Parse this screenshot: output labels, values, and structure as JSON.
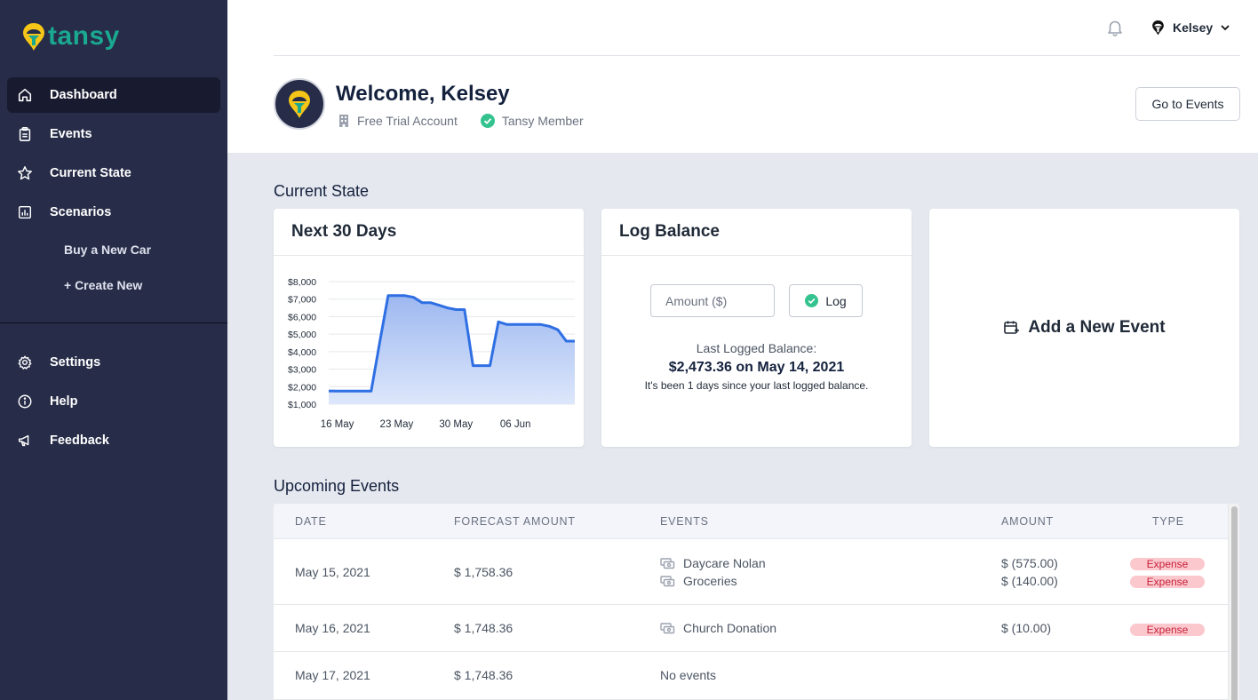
{
  "app": {
    "logo_text": "tansy"
  },
  "sidebar": {
    "items": [
      {
        "label": "Dashboard",
        "icon": "home-icon",
        "active": true
      },
      {
        "label": "Events",
        "icon": "clipboard-icon"
      },
      {
        "label": "Current State",
        "icon": "star-icon"
      },
      {
        "label": "Scenarios",
        "icon": "chart-bar-icon"
      }
    ],
    "scenarios": [
      "Buy a New Car",
      "+ Create New"
    ],
    "bottom_items": [
      {
        "label": "Settings",
        "icon": "gear-icon"
      },
      {
        "label": "Help",
        "icon": "info-icon"
      },
      {
        "label": "Feedback",
        "icon": "megaphone-icon"
      }
    ]
  },
  "header": {
    "user_name": "Kelsey",
    "welcome": "Welcome, Kelsey",
    "account_type": "Free Trial Account",
    "membership": "Tansy Member",
    "go_to_events": "Go to Events"
  },
  "current_state": {
    "title": "Current State",
    "next30": {
      "title": "Next 30 Days"
    },
    "log_balance": {
      "title": "Log Balance",
      "placeholder": "Amount ($)",
      "log_button": "Log",
      "last_label": "Last Logged Balance:",
      "last_value": "$2,473.36 on May 14, 2021",
      "since_text": "It's been 1 days since your last logged balance."
    },
    "add_event": {
      "label": "Add a New Event"
    }
  },
  "chart_data": {
    "type": "area",
    "title": "",
    "x": [
      "2021-05-15",
      "2021-05-16",
      "2021-05-17",
      "2021-05-18",
      "2021-05-19",
      "2021-05-20",
      "2021-05-21",
      "2021-05-22",
      "2021-05-23",
      "2021-05-24",
      "2021-05-25",
      "2021-05-26",
      "2021-05-27",
      "2021-05-28",
      "2021-05-29",
      "2021-05-30",
      "2021-05-31",
      "2021-06-01",
      "2021-06-02",
      "2021-06-03",
      "2021-06-04",
      "2021-06-05",
      "2021-06-06",
      "2021-06-07",
      "2021-06-08",
      "2021-06-09",
      "2021-06-10",
      "2021-06-11",
      "2021-06-12",
      "2021-06-13"
    ],
    "series": [
      {
        "values": [
          1758,
          1748,
          1748,
          1748,
          1748,
          1748,
          4500,
          7200,
          7200,
          7200,
          7100,
          6800,
          6800,
          6650,
          6500,
          6400,
          6400,
          3200,
          3200,
          3200,
          5700,
          5550,
          5550,
          5550,
          5550,
          5550,
          5450,
          5250,
          4600,
          4600
        ]
      }
    ],
    "x_ticks": [
      "16 May",
      "23 May",
      "30 May",
      "06 Jun"
    ],
    "y_ticks": [
      "$1,000",
      "$2,000",
      "$3,000",
      "$4,000",
      "$5,000",
      "$6,000",
      "$7,000",
      "$8,000"
    ],
    "ylim": [
      1000,
      8000
    ],
    "grid": true,
    "color": "#2f6fe4"
  },
  "upcoming": {
    "title": "Upcoming Events",
    "columns": [
      "DATE",
      "FORECAST AMOUNT",
      "EVENTS",
      "AMOUNT",
      "TYPE"
    ],
    "rows": [
      {
        "date": "May 15, 2021",
        "forecast": "$ 1,758.36",
        "events": [
          {
            "name": "Daycare Nolan",
            "amount": "$ (575.00)",
            "type": "Expense"
          },
          {
            "name": "Groceries",
            "amount": "$ (140.00)",
            "type": "Expense"
          }
        ]
      },
      {
        "date": "May 16, 2021",
        "forecast": "$ 1,748.36",
        "events": [
          {
            "name": "Church Donation",
            "amount": "$ (10.00)",
            "type": "Expense"
          }
        ]
      },
      {
        "date": "May 17, 2021",
        "forecast": "$ 1,748.36",
        "no_events": "No events",
        "events": []
      }
    ]
  },
  "colors": {
    "sidebar": "#272c48",
    "accent": "#1aa890",
    "chart": "#2f6fe4",
    "expense_bg": "#fbc9cd",
    "expense_text": "#c81e3a"
  }
}
